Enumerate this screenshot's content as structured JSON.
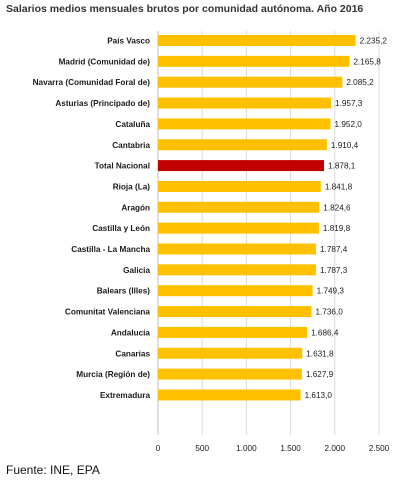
{
  "title": "Salarios medios mensuales brutos por comunidad autónoma. Año 2016",
  "source": "Fuente: INE, EPA",
  "colors": {
    "bar": "#FFC000",
    "highlight": "#C00000",
    "grid": "#d9d9d9",
    "axis": "#bfbfbf"
  },
  "chart_data": {
    "type": "bar",
    "orientation": "horizontal",
    "title": "Salarios medios mensuales brutos por comunidad autónoma. Año 2016",
    "categories": [
      "País Vasco",
      "Madrid (Comunidad de)",
      "Navarra (Comunidad Foral de)",
      "Asturias (Principado de)",
      "Cataluña",
      "Cantabria",
      "Total Nacional",
      "Rioja (La)",
      "Aragón",
      "Castilla y León",
      "Castilla - La Mancha",
      "Galicia",
      "Balears (Illes)",
      "Comunitat Valenciana",
      "Andalucía",
      "Canarias",
      "Murcia (Región de)",
      "Extremadura"
    ],
    "values": [
      2235.2,
      2165.8,
      2085.2,
      1957.3,
      1952.0,
      1910.4,
      1878.1,
      1841.8,
      1824.6,
      1819.8,
      1787.4,
      1787.3,
      1749.3,
      1736.0,
      1686.4,
      1631.8,
      1627.9,
      1613.0
    ],
    "value_labels": [
      "2.235,2",
      "2.165,8",
      "2.085,2",
      "1.957,3",
      "1.952,0",
      "1.910,4",
      "1.878,1",
      "1.841,8",
      "1.824,6",
      "1.819,8",
      "1.787,4",
      "1.787,3",
      "1.749,3",
      "1.736,0",
      "1.686,4",
      "1.631,8",
      "1.627,9",
      "1.613,0"
    ],
    "highlight": "Total Nacional",
    "xlim": [
      0,
      2500
    ],
    "xticks": [
      0,
      500,
      1000,
      1500,
      2000,
      2500
    ],
    "xtick_labels": [
      "0",
      "500",
      "1.000",
      "1.500",
      "2.000",
      "2.500"
    ],
    "grid": true,
    "legend": false,
    "xlabel": "",
    "ylabel": ""
  }
}
